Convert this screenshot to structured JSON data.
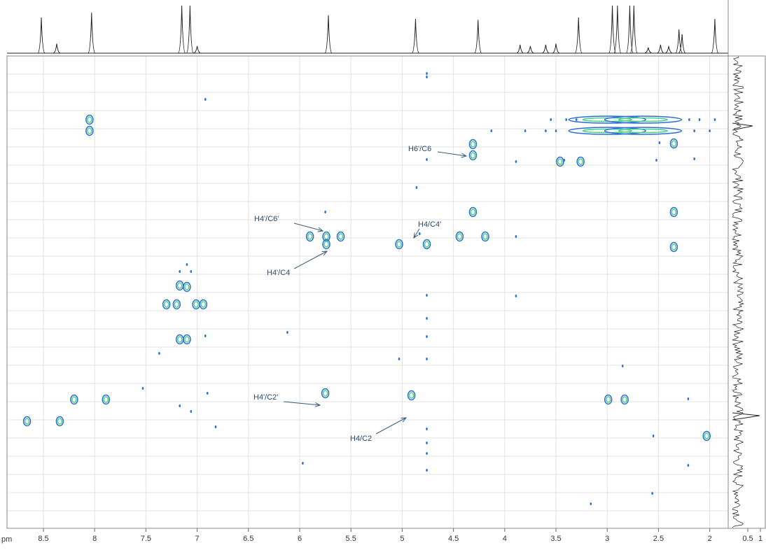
{
  "chart_data": {
    "type": "contour",
    "x_label": "pm",
    "xlim": [
      8.855,
      1.82
    ],
    "xticks": [
      8.5,
      8,
      7.5,
      7,
      6.5,
      6,
      5.5,
      5,
      4.5,
      4,
      3.5,
      3,
      2.5,
      2
    ],
    "ylim": [
      0,
      135
    ],
    "grid": true,
    "right_ticks": [
      0.5,
      1
    ],
    "projection": {
      "color": "#222222",
      "x": [
        8.52,
        8.37,
        8.03,
        7.15,
        7.07,
        7.0,
        5.72,
        4.87,
        4.26,
        3.85,
        3.75,
        3.6,
        3.5,
        3.28,
        2.95,
        2.9,
        2.78,
        2.74,
        2.6,
        2.48,
        2.4,
        2.3,
        2.27,
        1.95
      ],
      "values": [
        0.75,
        0.2,
        0.85,
        1,
        1,
        0.15,
        0.8,
        0.72,
        0.7,
        0.18,
        0.15,
        0.18,
        0.2,
        0.75,
        1,
        1,
        1,
        1,
        0.12,
        0.18,
        0.15,
        0.5,
        0.4,
        0.72
      ]
    },
    "series": [
      {
        "color": "#2a6fd6",
        "inner_color": "#55d08a",
        "style": "strong",
        "x": [
          8.05,
          8.05,
          4.31,
          4.31,
          3.46,
          3.26,
          2.35,
          2.35,
          2.35,
          4.31,
          5.9,
          5.74,
          5.74,
          5.6,
          5.03,
          4.76,
          4.44,
          4.19,
          7.17,
          7.1,
          7.3,
          7.2,
          7.01,
          6.94,
          7.17,
          7.1,
          8.66,
          8.34,
          8.2,
          7.89,
          5.75,
          4.91,
          2.99,
          2.83,
          2.03
        ],
        "values": [
          18.2,
          21.4,
          25.2,
          28.4,
          30.2,
          30.2,
          25,
          44.6,
          54.6,
          44.6,
          51.6,
          51.6,
          53.8,
          51.6,
          53.8,
          53.8,
          51.6,
          51.6,
          65.6,
          66,
          71,
          71,
          71,
          71,
          81,
          81,
          104.4,
          104.4,
          98.2,
          98.2,
          96.4,
          97,
          98.2,
          98.2,
          108.6
        ]
      },
      {
        "color": "#2a6fd6",
        "inner_color": "#55d08a",
        "style": "streak",
        "x": [
          3.0,
          2.65,
          3.0,
          2.65
        ],
        "values": [
          18.2,
          18.2,
          21.4,
          21.4
        ]
      },
      {
        "color": "#2a6fd6",
        "style": "weak",
        "x": [
          6.92,
          4.76,
          4.76,
          4.76,
          4.86,
          5.75,
          4.83,
          3.89,
          7.1,
          7.17,
          7.06,
          6.92,
          6.12,
          7.37,
          5.03,
          4.76,
          4.76,
          4.76,
          4.76,
          3.89,
          7.53,
          7.17,
          7.06,
          6.9,
          6.82,
          5.97,
          4.76,
          4.76,
          4.76,
          4.76,
          2.85,
          2.21,
          2.55,
          2.21,
          3.16,
          2.56,
          4.13,
          2.49,
          2.15,
          2.52,
          3.42,
          3.89,
          3.55,
          3.4,
          3.3,
          2.2,
          2.1,
          1.95,
          3.8,
          3.6,
          3.5,
          2.15,
          2.0
        ],
        "values": [
          12.4,
          5,
          6,
          29.6,
          37.6,
          44.6,
          50.8,
          51.6,
          59.6,
          61.6,
          61.6,
          80,
          79,
          85,
          86.6,
          86.6,
          68.4,
          75,
          80.2,
          68.6,
          95,
          100,
          101.6,
          96.4,
          106,
          116.4,
          106.6,
          110.6,
          113.6,
          118.4,
          88.6,
          98,
          108.6,
          117,
          128,
          125,
          21.4,
          24.8,
          29.4,
          29.8,
          29.8,
          30.2,
          18.2,
          18.2,
          18.2,
          18.2,
          18.2,
          18.2,
          21.4,
          21.4,
          21.4,
          21.4,
          21.4
        ]
      }
    ],
    "annotations": [
      "H6'/C6",
      "H4'/C6'",
      "H4/C4'",
      "H4'/C4",
      "H4'/C2'",
      "H4/C2"
    ]
  }
}
